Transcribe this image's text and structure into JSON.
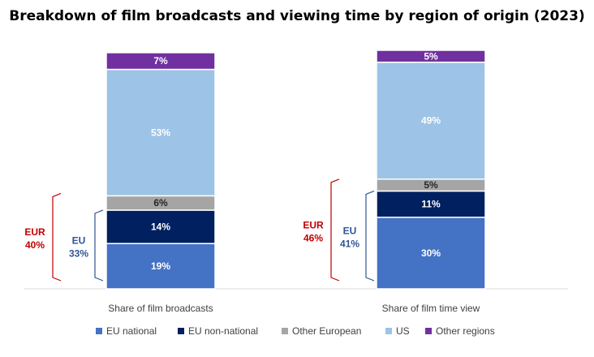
{
  "chart_data": {
    "type": "bar",
    "stacked": true,
    "title": "Breakdown of film broadcasts and viewing time by region of origin (2023)",
    "categories": [
      "Share of film broadcasts",
      "Share of film time view"
    ],
    "series": [
      {
        "name": "EU national",
        "color": "#4472c4",
        "label_color": "#ffffff",
        "values": [
          19,
          30
        ],
        "labels": [
          "19%",
          "30%"
        ]
      },
      {
        "name": "EU non-national",
        "color": "#002060",
        "label_color": "#ffffff",
        "values": [
          14,
          11
        ],
        "labels": [
          "14%",
          "11%"
        ]
      },
      {
        "name": "Other European",
        "color": "#a5a5a5",
        "label_color": "#262626",
        "values": [
          6,
          5
        ],
        "labels": [
          "6%",
          "5%"
        ]
      },
      {
        "name": "US",
        "color": "#9dc3e6",
        "label_color": "#ffffff",
        "values": [
          53,
          49
        ],
        "labels": [
          "53%",
          "49%"
        ]
      },
      {
        "name": "Other regions",
        "color": "#7030a0",
        "label_color": "#ffffff",
        "values": [
          7,
          5
        ],
        "labels": [
          "7%",
          "5%"
        ]
      }
    ],
    "groups": [
      {
        "name": "EUR",
        "color": "#c00000",
        "values": [
          40,
          46
        ],
        "labels": [
          "40%",
          "46%"
        ]
      },
      {
        "name": "EU",
        "color": "#2f5597",
        "values": [
          33,
          41
        ],
        "labels": [
          "33%",
          "41%"
        ]
      }
    ],
    "ylim": [
      0,
      100
    ],
    "legend_position": "bottom"
  }
}
